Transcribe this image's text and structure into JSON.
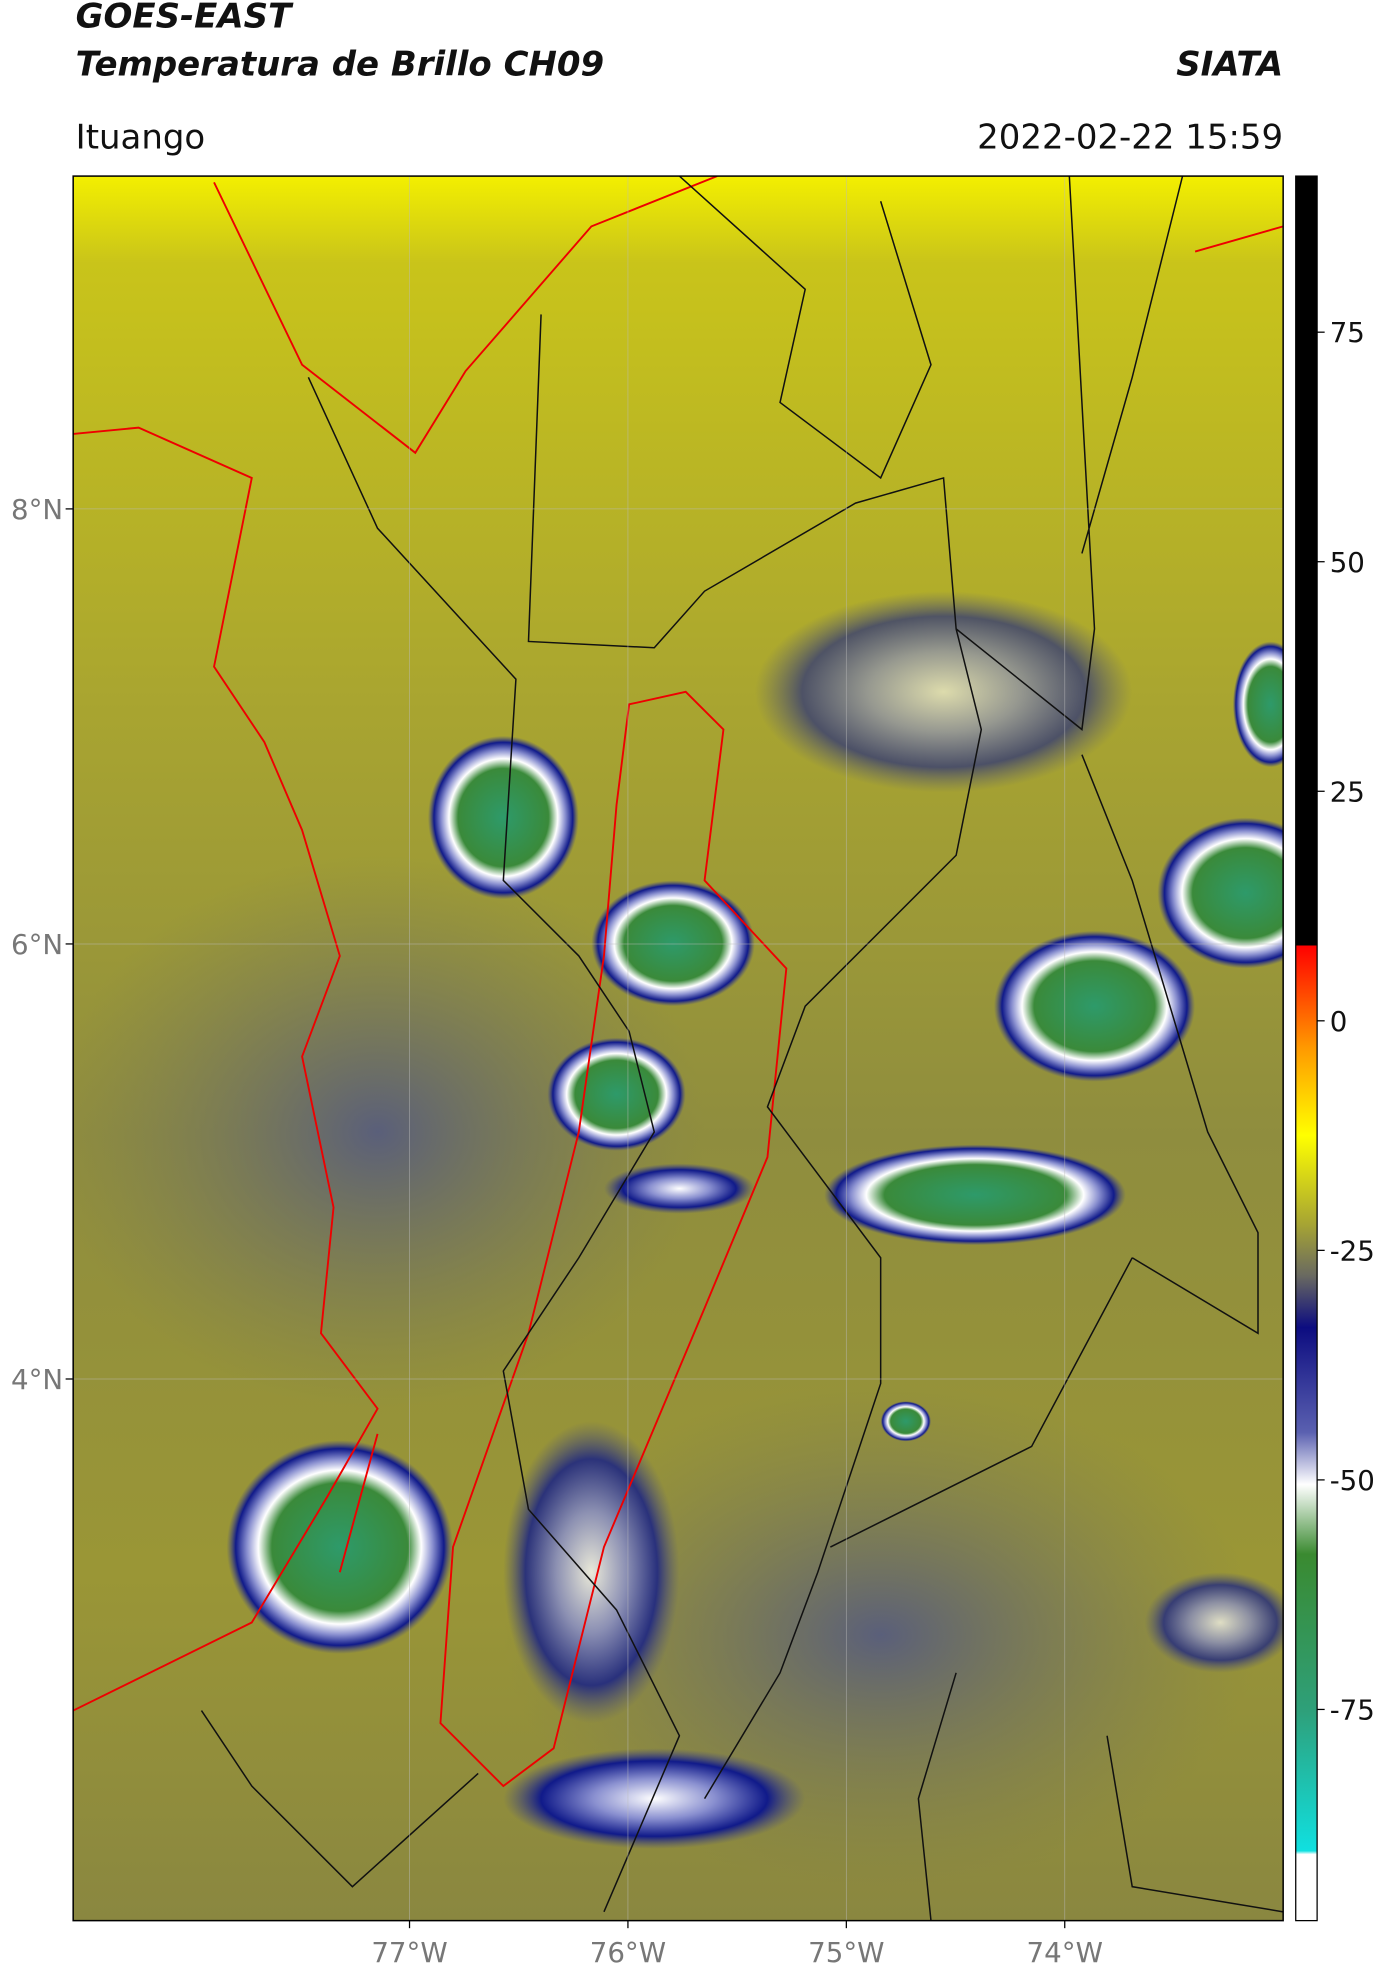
{
  "header": {
    "title": "GOES-EAST",
    "subtitle": "Temperatura de Brillo CH09",
    "agency": "SIATA",
    "region": "Ituango",
    "timestamp": "2022-02-22 15:59"
  },
  "map": {
    "xlim": [
      -78.54,
      -73.0
    ],
    "ylim": [
      1.51,
      9.53
    ],
    "xticks": [
      {
        "value": -77,
        "label": "77°W"
      },
      {
        "value": -76,
        "label": "76°W"
      },
      {
        "value": -75,
        "label": "75°W"
      },
      {
        "value": -74,
        "label": "74°W"
      }
    ],
    "yticks": [
      {
        "value": 8,
        "label": "8°N"
      },
      {
        "value": 6,
        "label": "6°N"
      },
      {
        "value": 4,
        "label": "4°N"
      }
    ]
  },
  "colorbar": {
    "lim": [
      -98,
      92
    ],
    "ticks": [
      75,
      50,
      25,
      0,
      -25,
      -50,
      -75
    ]
  }
}
